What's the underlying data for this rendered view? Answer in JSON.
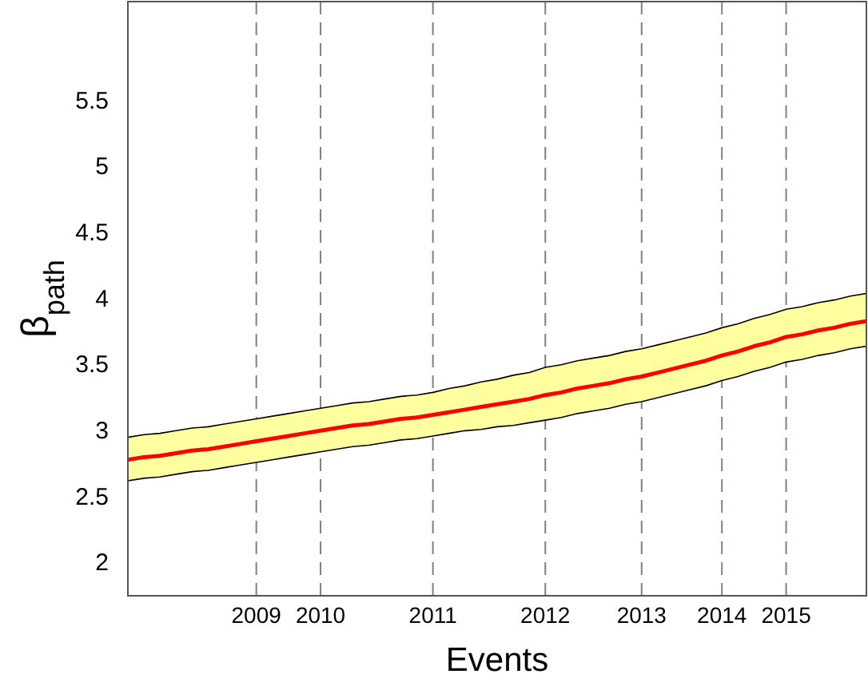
{
  "chart_data": {
    "type": "line",
    "xlabel": "Events",
    "ylabel": "β$_{path}$",
    "categories": [
      null,
      null,
      null,
      null,
      null,
      null,
      null,
      null,
      "2009",
      null,
      null,
      null,
      "2010",
      null,
      null,
      null,
      null,
      null,
      null,
      "2011",
      null,
      null,
      null,
      null,
      null,
      null,
      "2012",
      null,
      null,
      null,
      null,
      null,
      "2013",
      null,
      null,
      null,
      null,
      "2014",
      null,
      null,
      null,
      "2015",
      null,
      null,
      null,
      null,
      null
    ],
    "series": [
      {
        "color": "#ff0000",
        "values": [
          2.78,
          2.8,
          2.81,
          2.83,
          2.85,
          2.86,
          2.88,
          2.9,
          2.92,
          2.94,
          2.96,
          2.98,
          3.0,
          3.02,
          3.04,
          3.05,
          3.07,
          3.09,
          3.1,
          3.12,
          3.14,
          3.16,
          3.18,
          3.2,
          3.22,
          3.24,
          3.27,
          3.29,
          3.32,
          3.34,
          3.36,
          3.39,
          3.41,
          3.44,
          3.47,
          3.5,
          3.53,
          3.57,
          3.6,
          3.64,
          3.67,
          3.71,
          3.73,
          3.76,
          3.78,
          3.81,
          3.83
        ],
        "lower": [
          2.62,
          2.64,
          2.65,
          2.67,
          2.69,
          2.7,
          2.72,
          2.74,
          2.76,
          2.78,
          2.8,
          2.82,
          2.84,
          2.86,
          2.88,
          2.89,
          2.91,
          2.93,
          2.94,
          2.96,
          2.98,
          3.0,
          3.01,
          3.03,
          3.04,
          3.06,
          3.08,
          3.1,
          3.13,
          3.15,
          3.17,
          3.2,
          3.22,
          3.25,
          3.28,
          3.31,
          3.34,
          3.38,
          3.41,
          3.45,
          3.48,
          3.52,
          3.54,
          3.57,
          3.59,
          3.62,
          3.64
        ],
        "upper": [
          2.95,
          2.97,
          2.98,
          3.0,
          3.02,
          3.03,
          3.05,
          3.07,
          3.09,
          3.11,
          3.13,
          3.15,
          3.17,
          3.19,
          3.21,
          3.22,
          3.24,
          3.26,
          3.27,
          3.29,
          3.32,
          3.34,
          3.37,
          3.39,
          3.42,
          3.44,
          3.48,
          3.5,
          3.53,
          3.55,
          3.57,
          3.6,
          3.62,
          3.65,
          3.68,
          3.71,
          3.74,
          3.78,
          3.81,
          3.85,
          3.88,
          3.92,
          3.94,
          3.97,
          3.99,
          4.02,
          4.04
        ]
      }
    ],
    "ylim": [
      1.75,
      6.25
    ],
    "yticks": [
      2,
      2.5,
      3,
      3.5,
      4,
      4.5,
      5,
      5.5
    ],
    "ref_lines": [
      {
        "axis": "x",
        "value": "2009",
        "color": "#808080",
        "line_style": "dashed"
      },
      {
        "axis": "x",
        "value": "2010",
        "color": "#808080",
        "line_style": "dashed"
      },
      {
        "axis": "x",
        "value": "2011",
        "color": "#808080",
        "line_style": "dashed"
      },
      {
        "axis": "x",
        "value": "2012",
        "color": "#808080",
        "line_style": "dashed"
      },
      {
        "axis": "x",
        "value": "2013",
        "color": "#808080",
        "line_style": "dashed"
      },
      {
        "axis": "x",
        "value": "2014",
        "color": "#808080",
        "line_style": "dashed"
      },
      {
        "axis": "x",
        "value": "2015",
        "color": "#808080",
        "line_style": "dashed"
      }
    ],
    "grid": false,
    "marker": "none",
    "line_style": "solid"
  }
}
